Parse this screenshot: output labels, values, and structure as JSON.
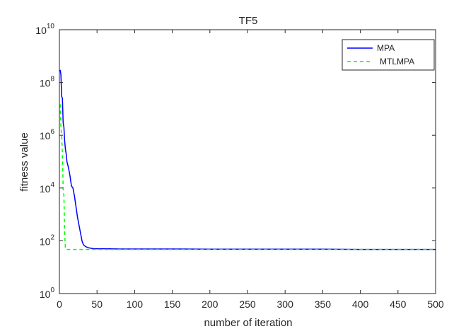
{
  "chart_data": {
    "type": "line",
    "title": "TF5",
    "xlabel": "number of iteration",
    "ylabel": "fitness value",
    "xlim": [
      0,
      500
    ],
    "ylim": [
      1,
      10000000000
    ],
    "yscale": "log",
    "grid": false,
    "legend_position": "top-right",
    "x_ticks": [
      0,
      50,
      100,
      150,
      200,
      250,
      300,
      350,
      400,
      450,
      500
    ],
    "x_tick_labels": [
      "0",
      "50",
      "100",
      "150",
      "200",
      "250",
      "300",
      "350",
      "400",
      "450",
      "500"
    ],
    "y_ticks": [
      1,
      100,
      10000,
      1000000,
      100000000,
      10000000000
    ],
    "y_tick_labels": [
      {
        "base": "10",
        "exp": "0"
      },
      {
        "base": "10",
        "exp": "2"
      },
      {
        "base": "10",
        "exp": "4"
      },
      {
        "base": "10",
        "exp": "6"
      },
      {
        "base": "10",
        "exp": "8"
      },
      {
        "base": "10",
        "exp": "10"
      }
    ],
    "series": [
      {
        "name": "MPA",
        "color": "#0000ff",
        "line_style": "solid",
        "x": [
          1,
          2,
          3,
          4,
          5,
          6,
          7,
          8,
          9,
          10,
          12,
          14,
          16,
          18,
          20,
          22,
          24,
          26,
          28,
          30,
          32,
          35,
          38,
          42,
          46,
          50,
          60,
          80,
          100,
          150,
          200,
          250,
          300,
          350,
          400,
          450,
          500
        ],
        "values": [
          300000000,
          200000000,
          30000000,
          25000000,
          3000000,
          2000000,
          600000,
          300000,
          200000,
          100000,
          60000,
          30000,
          12000,
          10000,
          5000,
          2000,
          800,
          400,
          200,
          100,
          70,
          60,
          55,
          52,
          50,
          50,
          50,
          49,
          49,
          49,
          48,
          48,
          48,
          48,
          47,
          47,
          47
        ]
      },
      {
        "name": "MTLMPA",
        "color": "#00ff00",
        "line_style": "dashed",
        "x": [
          1,
          2,
          3,
          4,
          5,
          6,
          7,
          8,
          10,
          20,
          50,
          100,
          200,
          300,
          400,
          500
        ],
        "values": [
          15000000,
          2000000,
          1000000,
          200000,
          10000,
          5000,
          200,
          48,
          47,
          47,
          47,
          47,
          47,
          47,
          47,
          47
        ]
      }
    ]
  }
}
